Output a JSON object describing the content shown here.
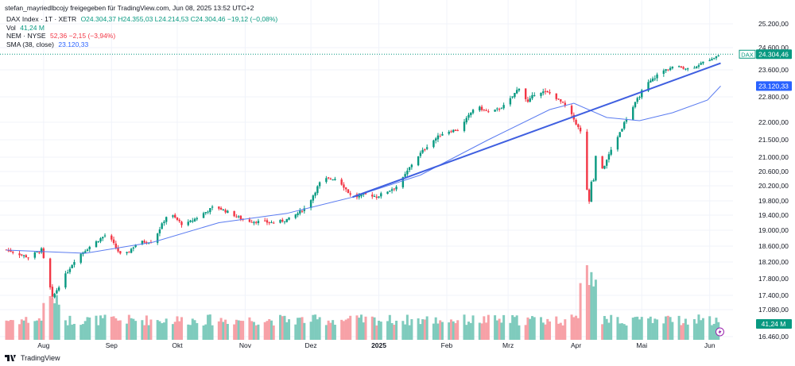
{
  "header": {
    "published_by": "stefan_mayriedlbcojy freigegeben für TradingView.com, Jun 08, 2025 13:52 UTC+2"
  },
  "legend": {
    "symbol": "DAX Index · 1T · XETR",
    "ohlc": "O24.304,37 H24.355,03 L24.214,53 C24.304,46 −19,12 (−0,08%)",
    "vol_label": "Vol",
    "vol_value": "41,24 M",
    "nem_label": "NEM · NYSE",
    "nem_value": "52,36 −2,15 (−3,94%)",
    "sma_label": "SMA (38, close)",
    "sma_value": "23.120,33"
  },
  "branding": {
    "text": "TradingView"
  },
  "colors": {
    "up": "#089981",
    "down": "#f23645",
    "up_vol": "#7fcbbd",
    "down_vol": "#f7a1a7",
    "sma": "#5b7cf0",
    "trendline": "#3f5fe0",
    "text": "#131722",
    "grid": "#f0f3fa"
  },
  "chart_data": {
    "type": "candlestick",
    "title": "DAX Index · 1T · XETR",
    "price_axis": [
      "25.200,00",
      "24.600,00",
      "23.600,00",
      "22.800,00",
      "22.000,00",
      "21.500,00",
      "21.000,00",
      "20.600,00",
      "20.200,00",
      "19.800,00",
      "19.400,00",
      "19.000,00",
      "18.600,00",
      "18.200,00",
      "17.800,00",
      "17.400,00",
      "17.080,00",
      "16.460,00"
    ],
    "ylim": [
      16460,
      25200
    ],
    "time_axis": [
      "Aug",
      "Sep",
      "Okt",
      "Nov",
      "Dez",
      "2025",
      "Feb",
      "Mrz",
      "Apr",
      "Mai",
      "Jun"
    ],
    "last_price_label": "DAX",
    "last_price": "24.304,46",
    "sma_label_value": "23.120,33",
    "volume_label": "41,24 M",
    "anchors": [
      [
        "07-15",
        18510
      ],
      [
        "07-25",
        18320
      ],
      [
        "07-31",
        18510
      ],
      [
        "08-05",
        17340
      ],
      [
        "08-09",
        17720
      ],
      [
        "08-16",
        18320
      ],
      [
        "08-23",
        18630
      ],
      [
        "08-30",
        18910
      ],
      [
        "09-06",
        18300
      ],
      [
        "09-13",
        18700
      ],
      [
        "09-20",
        18720
      ],
      [
        "09-27",
        19470
      ],
      [
        "10-04",
        19120
      ],
      [
        "10-11",
        19370
      ],
      [
        "10-18",
        19650
      ],
      [
        "10-25",
        19460
      ],
      [
        "11-01",
        19250
      ],
      [
        "11-08",
        19220
      ],
      [
        "11-15",
        19200
      ],
      [
        "11-22",
        19320
      ],
      [
        "11-29",
        19630
      ],
      [
        "12-06",
        20380
      ],
      [
        "12-13",
        20410
      ],
      [
        "12-20",
        19880
      ],
      [
        "12-27",
        19980
      ],
      [
        "12-31",
        19910
      ],
      [
        "01-10",
        20210
      ],
      [
        "01-17",
        20900
      ],
      [
        "01-24",
        21390
      ],
      [
        "01-31",
        21730
      ],
      [
        "02-07",
        21790
      ],
      [
        "02-14",
        22510
      ],
      [
        "02-21",
        22290
      ],
      [
        "02-28",
        22550
      ],
      [
        "03-06",
        23080
      ],
      [
        "03-10",
        22630
      ],
      [
        "03-14",
        22980
      ],
      [
        "03-21",
        22890
      ],
      [
        "03-28",
        22460
      ],
      [
        "04-03",
        21720
      ],
      [
        "04-04",
        20640
      ],
      [
        "04-07",
        19790
      ],
      [
        "04-08",
        20280
      ],
      [
        "04-09",
        20350
      ],
      [
        "04-10",
        21010
      ],
      [
        "04-11",
        20370
      ],
      [
        "04-17",
        21200
      ],
      [
        "04-25",
        22240
      ],
      [
        "05-02",
        23080
      ],
      [
        "05-09",
        23500
      ],
      [
        "05-16",
        23770
      ],
      [
        "05-23",
        23630
      ],
      [
        "05-30",
        23990
      ],
      [
        "06-06",
        24300
      ]
    ],
    "trendline": [
      [
        "12-20",
        19900
      ],
      [
        "06-06",
        23900
      ]
    ],
    "sma": [
      [
        "07-15",
        18500
      ],
      [
        "08-20",
        18420
      ],
      [
        "09-20",
        18700
      ],
      [
        "10-20",
        19200
      ],
      [
        "11-20",
        19450
      ],
      [
        "12-20",
        19900
      ],
      [
        "01-20",
        20500
      ],
      [
        "02-20",
        21500
      ],
      [
        "03-20",
        22400
      ],
      [
        "03-31",
        22600
      ],
      [
        "04-15",
        22150
      ],
      [
        "04-30",
        22050
      ],
      [
        "05-15",
        22300
      ],
      [
        "05-31",
        22700
      ],
      [
        "06-06",
        23120
      ]
    ]
  }
}
